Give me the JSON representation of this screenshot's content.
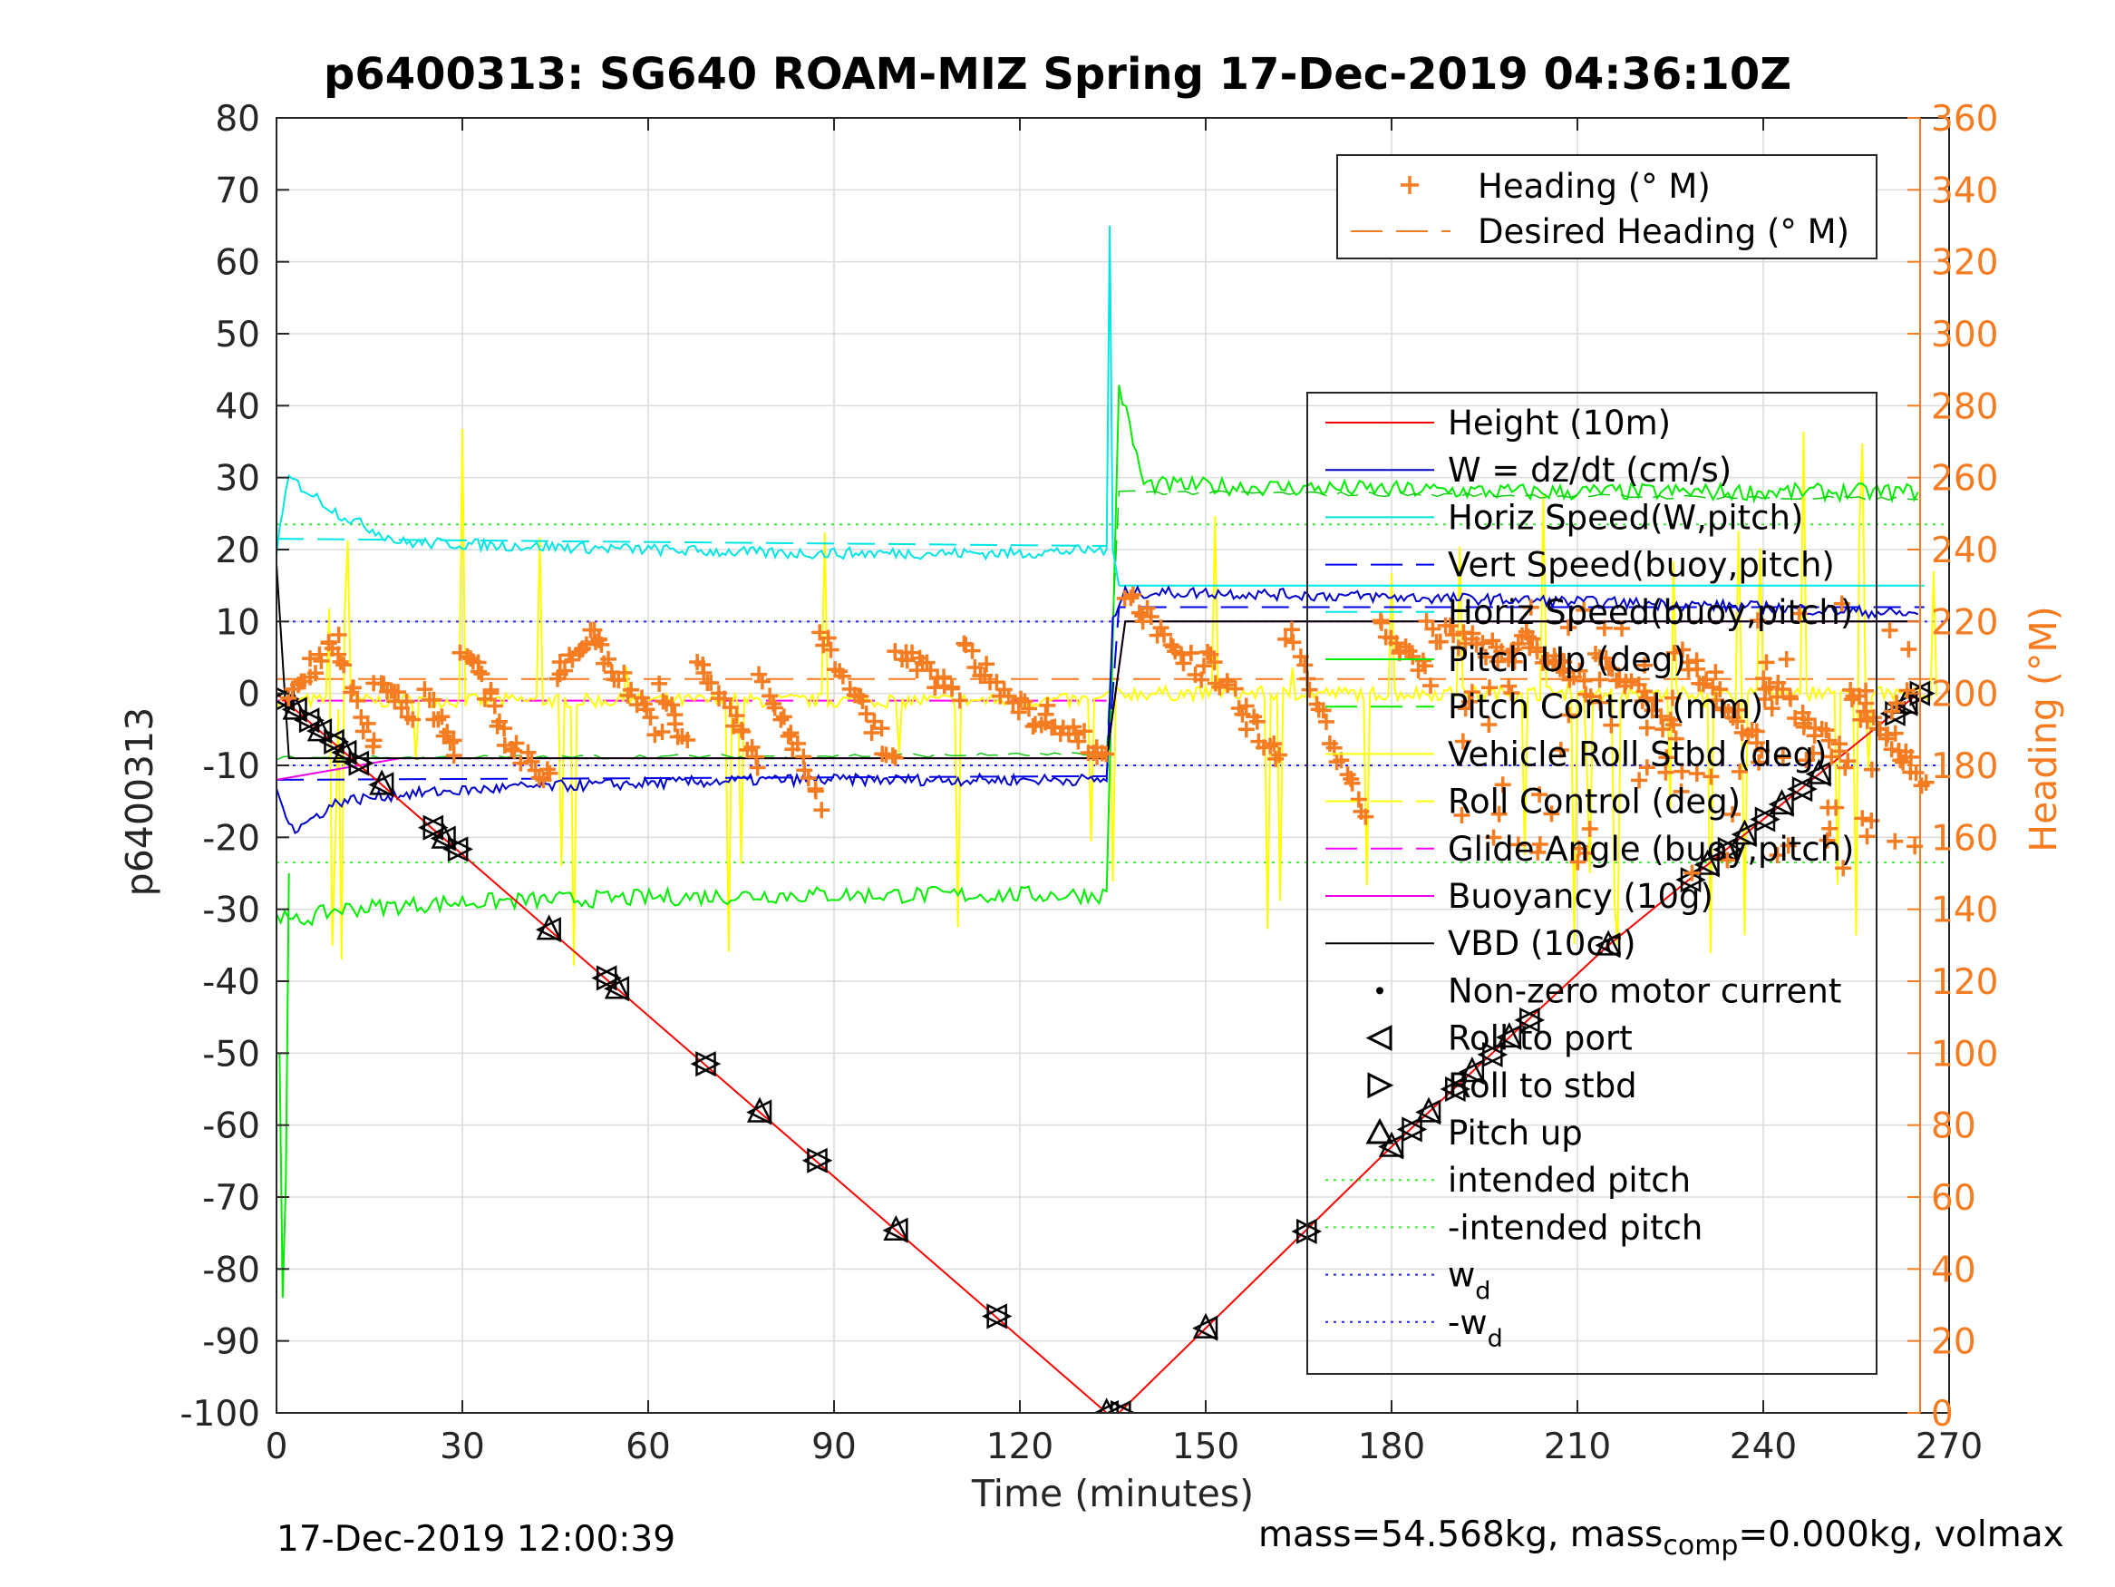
{
  "title": "p6400313: SG640 ROAM-MIZ Spring 17-Dec-2019 04:36:10Z",
  "footer": {
    "timestamp": "17-Dec-2019 12:00:39",
    "mass_text": "mass=54.568kg, mass",
    "mass_sub": "comp",
    "mass_rest": "=0.000kg, volmax"
  },
  "colors": {
    "height": "#ff0000",
    "w": "#0000cc",
    "horiz_speed": "#00e5e5",
    "vert_speed": "#0000ee",
    "pitch": "#00ee00",
    "roll": "#ffff00",
    "glide": "#ff00ff",
    "buoyancy": "#ee00ee",
    "vbd": "#000000",
    "heading": "#f57c20",
    "intended": "#33ee33",
    "wd": "#2222ff"
  },
  "chart_data": {
    "type": "line",
    "title": "p6400313: SG640 ROAM-MIZ Spring 17-Dec-2019 04:36:10Z",
    "xlabel": "Time (minutes)",
    "ylabel_left": "p6400313",
    "ylabel_right": "Heading (°M)",
    "xlim": [
      0,
      270
    ],
    "ylim_left": [
      -100,
      80
    ],
    "ylim_right": [
      0,
      360
    ],
    "xticks": [
      "0",
      "30",
      "60",
      "90",
      "120",
      "150",
      "180",
      "210",
      "240",
      "270"
    ],
    "yticks_left": [
      "80",
      "70",
      "60",
      "50",
      "40",
      "30",
      "20",
      "10",
      "0",
      "-10",
      "-20",
      "-30",
      "-40",
      "-50",
      "-60",
      "-70",
      "-80",
      "-90",
      "-100"
    ],
    "yticks_right": [
      "360",
      "340",
      "320",
      "300",
      "280",
      "260",
      "240",
      "220",
      "200",
      "180",
      "160",
      "140",
      "120",
      "100",
      "80",
      "60",
      "40",
      "20",
      "0"
    ],
    "grid": true,
    "legend_top": [
      "Heading (° M)",
      "Desired Heading (° M)"
    ],
    "legend_main": [
      "Height (10m)",
      "W = dz/dt (cm/s)",
      "Horiz Speed(W,pitch)",
      "Vert Speed(buoy,pitch)",
      "Horiz Speed(buoy,pitch)",
      "Pitch Up (deg)",
      "Pitch Control (mm)",
      "Vehicle Roll Stbd (deg)",
      "Roll Control (deg)",
      "Glide Angle (buoy,pitch)",
      "Buoyancy (10g)",
      "VBD (10cc)",
      "Non-zero motor current",
      "Roll to port",
      "Roll to stbd",
      "Pitch up",
      "intended pitch",
      "-intended pitch",
      "w",
      "-w"
    ],
    "legend_main_sub": "d",
    "legend_placement": "right",
    "series": [
      {
        "name": "Height (10m)",
        "x": [
          0,
          134,
          136,
          180,
          215,
          265
        ],
        "y": [
          0,
          -100,
          -100,
          -63,
          -35,
          0
        ]
      },
      {
        "name": "W = dz/dt (cm/s)",
        "x": [
          0,
          3,
          10,
          20,
          40,
          80,
          134,
          135,
          137,
          150,
          200,
          240,
          265
        ],
        "y": [
          -14,
          -19,
          -15,
          -14,
          -13,
          -12,
          -12,
          10,
          14,
          14,
          13,
          12,
          11
        ]
      },
      {
        "name": "Horiz Speed(W,pitch)",
        "x": [
          0,
          2,
          10,
          20,
          40,
          80,
          120,
          134,
          135,
          136
        ],
        "y": [
          20,
          30,
          25,
          21,
          20.5,
          19.5,
          19.5,
          20,
          65,
          15
        ]
      },
      {
        "name": "Pitch Up (deg)",
        "x": [
          0,
          2,
          10,
          30,
          80,
          134,
          136,
          140,
          200,
          265
        ],
        "y": [
          -30,
          -32,
          -30,
          -29,
          -28,
          -28,
          43,
          29,
          28,
          28
        ]
      },
      {
        "name": "VBD (10cc)",
        "x": [
          0,
          2,
          134,
          137,
          265
        ],
        "y": [
          18,
          -9,
          -9,
          10,
          10
        ]
      },
      {
        "name": "Buoyancy (10g)",
        "x": [
          0,
          20,
          134,
          137,
          265
        ],
        "y": [
          -12,
          -9,
          -9,
          10,
          10
        ]
      },
      {
        "name": "Glide Angle (buoy,pitch)",
        "x": [
          0,
          134,
          137,
          265
        ],
        "y": [
          0,
          0,
          0,
          0
        ]
      },
      {
        "name": "Heading (° M)",
        "x": [
          2,
          10,
          20,
          30,
          40,
          50,
          60,
          70,
          80,
          90,
          100,
          110,
          120,
          130,
          137,
          150,
          160,
          170,
          180,
          190,
          200,
          210,
          220,
          230,
          240,
          250,
          260
        ],
        "y": [
          210,
          195,
          190,
          205,
          175,
          210,
          195,
          200,
          190,
          210,
          200,
          205,
          210,
          195,
          230,
          210,
          180,
          200,
          195,
          205,
          200,
          195,
          210,
          200,
          205,
          190,
          185
        ]
      },
      {
        "name": "Desired Heading (° M)",
        "x": [
          0,
          270
        ],
        "y": [
          204,
          204
        ]
      }
    ],
    "reference_lines": {
      "intended_pitch": 23.5,
      "neg_intended_pitch": -23.5,
      "wd": 10,
      "neg_wd": -10
    }
  }
}
